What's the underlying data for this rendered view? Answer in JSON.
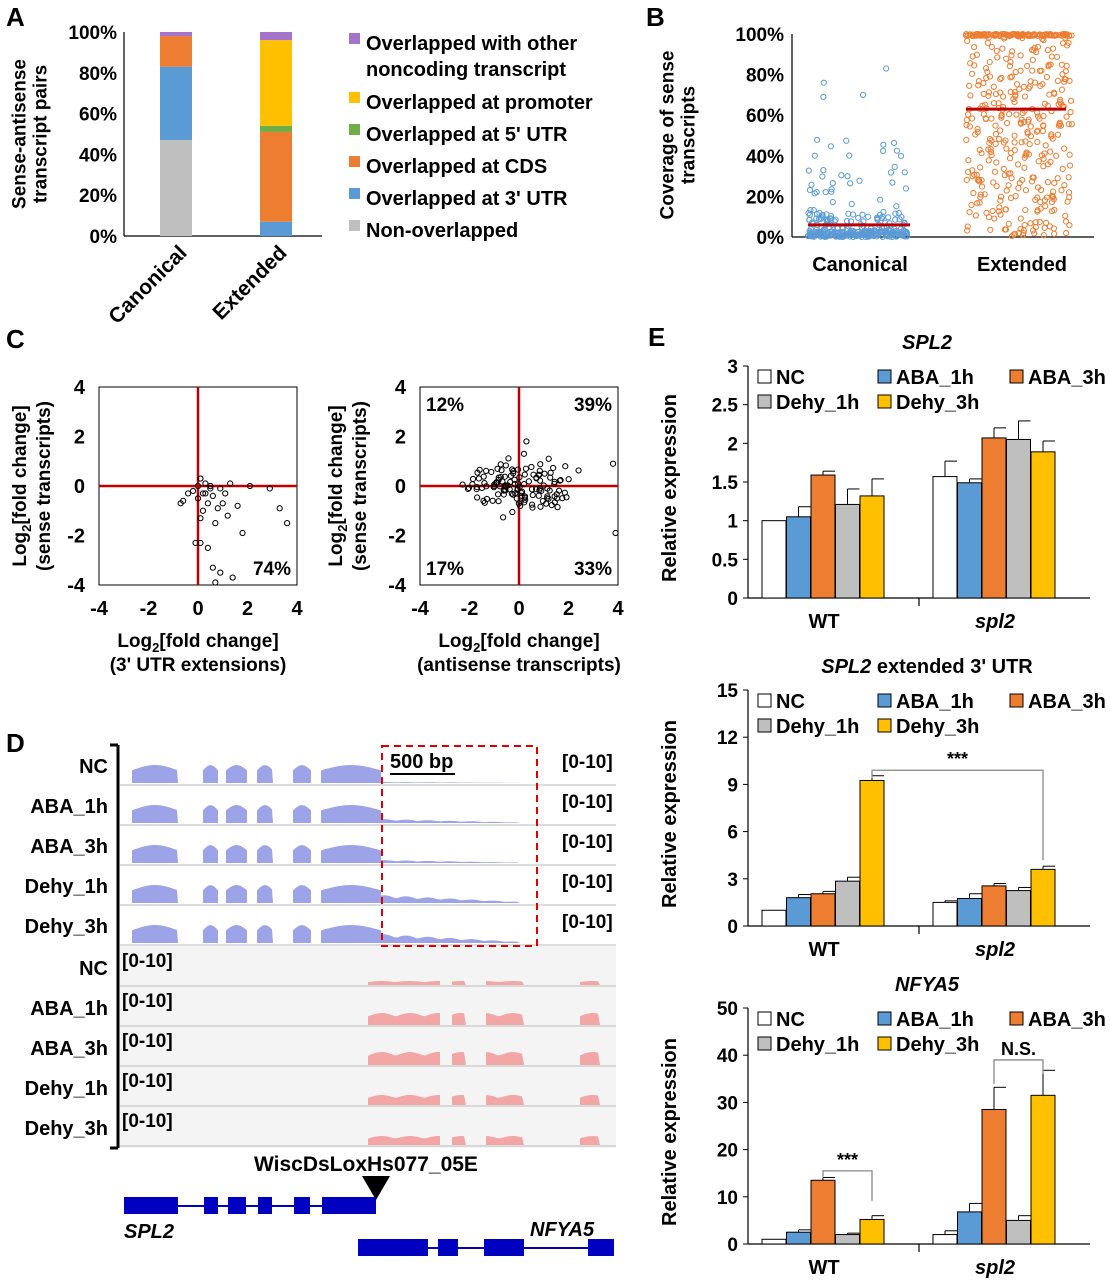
{
  "panel_letters": [
    "A",
    "B",
    "C",
    "D",
    "E"
  ],
  "colors": {
    "noncoding": "#a374c9",
    "promoter": "#ffc000",
    "utr5": "#70ad47",
    "cds": "#ed7d31",
    "utr3": "#5b9bd5",
    "nonoverlap": "#bfbfbf",
    "blue_pt": "#5b9bd5",
    "orange_pt": "#ed7d31",
    "median": "#c00000",
    "axis_red": "#c00000",
    "track_blue": "#9ca3e6",
    "track_red": "#f2a6a6",
    "gene": "#0000c0",
    "dashed_box": "#e00000",
    "nc": "#ffffff",
    "aba1": "#5b9bd5",
    "aba3": "#ed7d31",
    "dehy1": "#bfbfbf",
    "dehy3": "#ffc000"
  },
  "chart_data": [
    {
      "id": "A",
      "type": "bar",
      "stacked": true,
      "categories": [
        "Canonical",
        "Extended"
      ],
      "ylabel": "Sense-antisense transcript pairs",
      "ylim": [
        0,
        100
      ],
      "yticks": [
        "0%",
        "20%",
        "40%",
        "60%",
        "80%",
        "100%"
      ],
      "series": [
        {
          "name": "Non-overlapped",
          "values": [
            47,
            0
          ]
        },
        {
          "name": "Overlapped at 3' UTR",
          "values": [
            36,
            7
          ]
        },
        {
          "name": "Overlapped at CDS",
          "values": [
            15,
            44
          ]
        },
        {
          "name": "Overlapped at 5' UTR",
          "values": [
            0,
            3
          ]
        },
        {
          "name": "Overlapped at promoter",
          "values": [
            0,
            42
          ]
        },
        {
          "name": "Overlapped with other noncoding transcript",
          "values": [
            2,
            4
          ]
        }
      ],
      "legend_lines": [
        {
          "series": 5,
          "lines": [
            "Overlapped with other",
            "noncoding transcript"
          ]
        },
        {
          "series": 4,
          "lines": [
            "Overlapped at promoter"
          ]
        },
        {
          "series": 3,
          "lines": [
            "Overlapped at 5' UTR"
          ]
        },
        {
          "series": 2,
          "lines": [
            "Overlapped at CDS"
          ]
        },
        {
          "series": 1,
          "lines": [
            "Overlapped at 3' UTR"
          ]
        },
        {
          "series": 0,
          "lines": [
            "Non-overlapped"
          ]
        }
      ]
    },
    {
      "id": "B",
      "type": "scatter",
      "categories": [
        "Canonical",
        "Extended"
      ],
      "ylabel": "Coverage of sense transcripts",
      "ylim": [
        0,
        100
      ],
      "yticks": [
        "0%",
        "20%",
        "40%",
        "60%",
        "80%",
        "100%"
      ],
      "medians": [
        6,
        63
      ],
      "n_points": [
        320,
        460
      ]
    },
    {
      "id": "C1",
      "type": "scatter",
      "xlabel": "Log2[fold change] (3' UTR extensions)",
      "ylabel": "Log2[fold change] (sense transcripts)",
      "xlim": [
        -4,
        4
      ],
      "ylim": [
        -4,
        4
      ],
      "ticks": [
        "-4",
        "-2",
        "0",
        "2",
        "4"
      ],
      "quadrant_labels": [
        {
          "text": "74%",
          "quadrant": "bottom-right"
        }
      ],
      "points": [
        [
          0.1,
          0.3
        ],
        [
          0.3,
          0.1
        ],
        [
          0.5,
          0.0
        ],
        [
          0.9,
          -0.1
        ],
        [
          1.3,
          0.1
        ],
        [
          2.1,
          0.0
        ],
        [
          2.9,
          -0.1
        ],
        [
          -0.2,
          -0.2
        ],
        [
          0.2,
          -0.3
        ],
        [
          0.6,
          -0.4
        ],
        [
          0.0,
          -0.5
        ],
        [
          -0.6,
          -0.6
        ],
        [
          -0.7,
          -0.7
        ],
        [
          0.4,
          -0.7
        ],
        [
          1.0,
          -0.7
        ],
        [
          0.2,
          -1.0
        ],
        [
          0.8,
          -0.9
        ],
        [
          1.2,
          -1.2
        ],
        [
          1.6,
          -0.8
        ],
        [
          0.7,
          -1.5
        ],
        [
          0.3,
          -0.3
        ],
        [
          0.0,
          0.0
        ],
        [
          -0.4,
          -0.3
        ],
        [
          3.3,
          -0.9
        ],
        [
          3.6,
          -1.5
        ],
        [
          1.8,
          -1.9
        ],
        [
          0.1,
          -2.3
        ],
        [
          0.4,
          -2.5
        ],
        [
          -0.1,
          -2.3
        ],
        [
          0.6,
          -3.3
        ],
        [
          0.9,
          -3.5
        ],
        [
          1.4,
          -3.7
        ],
        [
          0.7,
          -3.9
        ],
        [
          0.1,
          -1.3
        ],
        [
          1.1,
          -0.3
        ],
        [
          0.5,
          -0.1
        ]
      ]
    },
    {
      "id": "C2",
      "type": "scatter",
      "xlabel": "Log2[fold change] (antisense transcripts)",
      "ylabel": "Log2[fold change] (sense transcripts)",
      "xlim": [
        -4,
        4
      ],
      "ylim": [
        -4,
        4
      ],
      "ticks": [
        "-4",
        "-2",
        "0",
        "2",
        "4"
      ],
      "quadrant_labels": [
        {
          "text": "12%",
          "quadrant": "top-left"
        },
        {
          "text": "39%",
          "quadrant": "top-right"
        },
        {
          "text": "17%",
          "quadrant": "bottom-left"
        },
        {
          "text": "33%",
          "quadrant": "bottom-right"
        }
      ]
    },
    {
      "id": "E1",
      "type": "bar",
      "title": "SPL2",
      "categories": [
        "WT",
        "spl2"
      ],
      "ylabel": "Relative expression",
      "ylim": [
        0,
        3
      ],
      "yticks": [
        "0",
        "0.5",
        "1",
        "1.5",
        "2",
        "2.5",
        "3"
      ],
      "series": [
        {
          "name": "NC",
          "values": [
            1.0,
            1.57
          ],
          "errors": [
            0.0,
            0.2
          ]
        },
        {
          "name": "ABA_1h",
          "values": [
            1.05,
            1.49
          ],
          "errors": [
            0.13,
            0.05
          ]
        },
        {
          "name": "ABA_3h",
          "values": [
            1.59,
            2.07
          ],
          "errors": [
            0.05,
            0.13
          ]
        },
        {
          "name": "Dehy_1h",
          "values": [
            1.21,
            2.05
          ],
          "errors": [
            0.2,
            0.24
          ]
        },
        {
          "name": "Dehy_3h",
          "values": [
            1.32,
            1.89
          ],
          "errors": [
            0.22,
            0.14
          ]
        }
      ]
    },
    {
      "id": "E2",
      "type": "bar",
      "title": "SPL2 extended 3' UTR",
      "categories": [
        "WT",
        "spl2"
      ],
      "ylabel": "Relative expression",
      "ylim": [
        0,
        15
      ],
      "yticks": [
        "0",
        "3",
        "6",
        "9",
        "12",
        "15"
      ],
      "series": [
        {
          "name": "NC",
          "values": [
            1.0,
            1.5
          ],
          "errors": [
            0.0,
            0.1
          ]
        },
        {
          "name": "ABA_1h",
          "values": [
            1.8,
            1.75
          ],
          "errors": [
            0.2,
            0.3
          ]
        },
        {
          "name": "ABA_3h",
          "values": [
            2.05,
            2.55
          ],
          "errors": [
            0.15,
            0.15
          ]
        },
        {
          "name": "Dehy_1h",
          "values": [
            2.85,
            2.25
          ],
          "errors": [
            0.25,
            0.2
          ]
        },
        {
          "name": "Dehy_3h",
          "values": [
            9.25,
            3.6
          ],
          "errors": [
            0.3,
            0.2
          ]
        }
      ],
      "annotation": "***"
    },
    {
      "id": "E3",
      "type": "bar",
      "title": "NFYA5",
      "categories": [
        "WT",
        "spl2"
      ],
      "ylabel": "Relative expression",
      "ylim": [
        0,
        50
      ],
      "yticks": [
        "0",
        "10",
        "20",
        "30",
        "40",
        "50"
      ],
      "series": [
        {
          "name": "NC",
          "values": [
            1.0,
            2.0
          ],
          "errors": [
            0.0,
            0.8
          ]
        },
        {
          "name": "ABA_1h",
          "values": [
            2.5,
            6.8
          ],
          "errors": [
            0.5,
            1.8
          ]
        },
        {
          "name": "ABA_3h",
          "values": [
            13.5,
            28.5
          ],
          "errors": [
            0.6,
            4.7
          ]
        },
        {
          "name": "Dehy_1h",
          "values": [
            2.0,
            5.0
          ],
          "errors": [
            0.3,
            1.0
          ]
        },
        {
          "name": "Dehy_3h",
          "values": [
            5.2,
            31.5
          ],
          "errors": [
            0.8,
            5.3
          ]
        }
      ],
      "annotations": [
        "***",
        "N.S."
      ]
    }
  ],
  "panel_d": {
    "samples": [
      "NC",
      "ABA_1h",
      "ABA_3h",
      "Dehy_1h",
      "Dehy_3h"
    ],
    "range_label": "[0-10]",
    "scale_label": "500 bp",
    "insertion_label": "WiscDsLoxHs077_05E",
    "genes": [
      "SPL2",
      "NFYA5"
    ]
  }
}
